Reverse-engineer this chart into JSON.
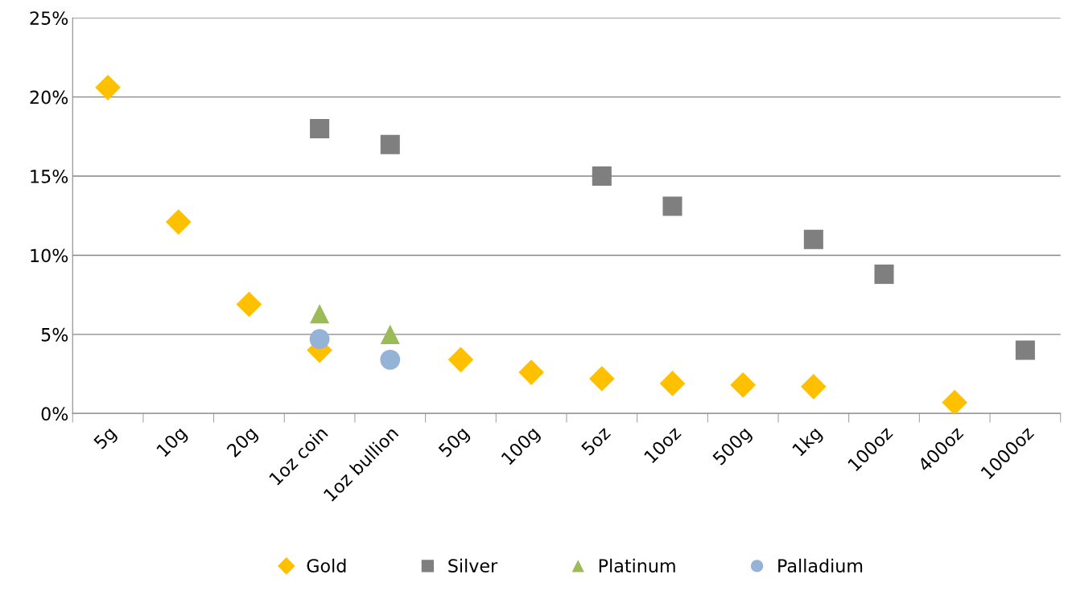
{
  "chart_data": {
    "type": "scatter",
    "categories": [
      "5g",
      "10g",
      "20g",
      "1oz coin",
      "1oz bullion",
      "50g",
      "100g",
      "5oz",
      "10oz",
      "500g",
      "1kg",
      "100oz",
      "400oz",
      "1000oz"
    ],
    "series": [
      {
        "name": "Gold",
        "color": "#ffc000",
        "marker": "diamond",
        "values": [
          20.6,
          12.1,
          6.9,
          4.0,
          null,
          3.4,
          2.6,
          2.2,
          1.9,
          1.8,
          1.7,
          null,
          0.7,
          null
        ]
      },
      {
        "name": "Silver",
        "color": "#7f7f7f",
        "marker": "square",
        "values": [
          null,
          null,
          null,
          18.0,
          17.0,
          null,
          null,
          15.0,
          13.1,
          null,
          11.0,
          8.8,
          null,
          4.0
        ]
      },
      {
        "name": "Platinum",
        "color": "#9bbb59",
        "marker": "triangle",
        "values": [
          null,
          null,
          null,
          6.3,
          5.0,
          null,
          null,
          null,
          null,
          null,
          null,
          null,
          null,
          null
        ]
      },
      {
        "name": "Palladium",
        "color": "#95b3d7",
        "marker": "circle",
        "values": [
          null,
          null,
          null,
          4.7,
          3.4,
          null,
          null,
          null,
          null,
          null,
          null,
          null,
          null,
          null
        ]
      }
    ],
    "ylim": [
      0,
      25
    ],
    "yticks": [
      {
        "value": 0,
        "label": "0%"
      },
      {
        "value": 5,
        "label": "5%"
      },
      {
        "value": 10,
        "label": "10%"
      },
      {
        "value": 15,
        "label": "15%"
      },
      {
        "value": 20,
        "label": "20%"
      },
      {
        "value": 25,
        "label": "25%"
      }
    ],
    "grid": "y",
    "legend": "bottom"
  }
}
